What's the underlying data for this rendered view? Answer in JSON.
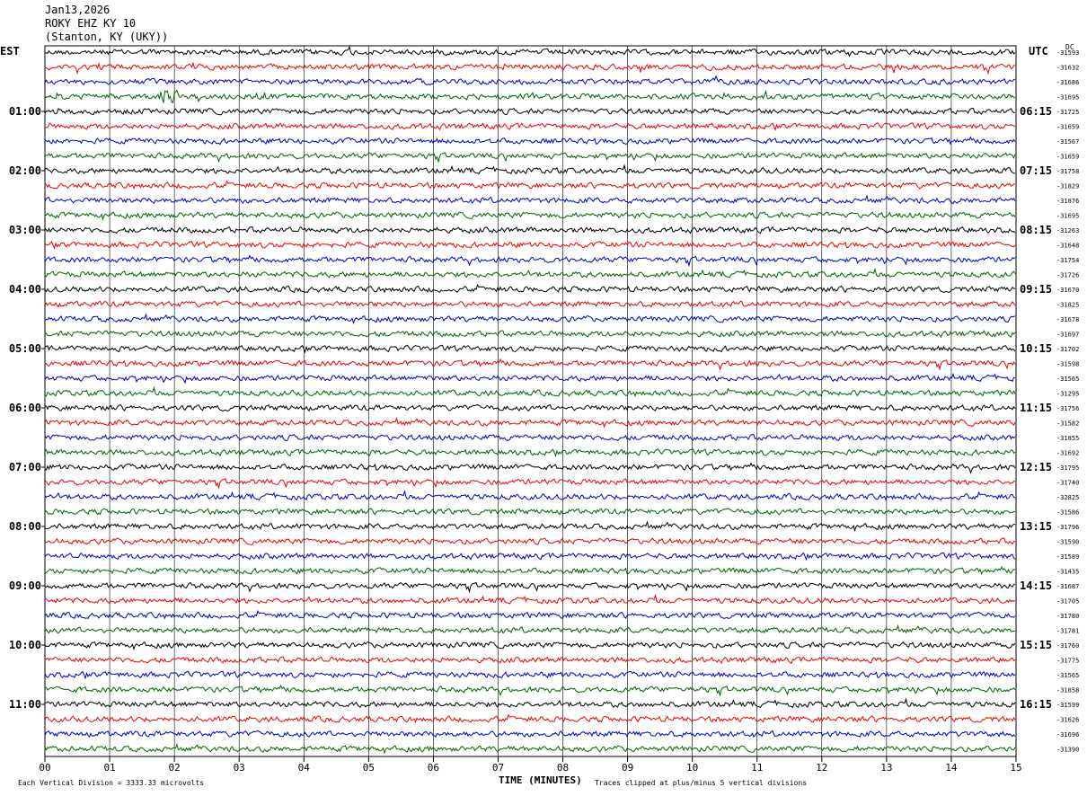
{
  "header": {
    "date": "Jan13,2026",
    "station": "ROKY EHZ KY 10",
    "location": "(Stanton, KY (UKY))"
  },
  "corners": {
    "left": "EST",
    "right": "UTC",
    "dc": "DC"
  },
  "footer": {
    "scale": "Each Vertical Division = 3333.33 microvolts",
    "xlabel": "TIME (MINUTES)",
    "clip": "Traces clipped at plus/minus 5 vertical divisions"
  },
  "colors": {
    "traces": [
      "#000000",
      "#ee0000",
      "#0000cc",
      "#006400"
    ],
    "grid": "#000000"
  },
  "chart_data": {
    "type": "line",
    "title": "ROKY EHZ KY 10",
    "xlabel": "TIME (MINUTES)",
    "xlim": [
      0,
      15
    ],
    "x_ticks": [
      "00",
      "01",
      "02",
      "03",
      "04",
      "05",
      "06",
      "07",
      "08",
      "09",
      "10",
      "11",
      "12",
      "13",
      "14",
      "15"
    ],
    "rows_per_hour": 4,
    "row_count": 48,
    "left_hour_labels": [
      "01:00",
      "02:00",
      "03:00",
      "04:00",
      "05:00",
      "06:00",
      "07:00",
      "08:00",
      "09:00",
      "10:00",
      "11:00"
    ],
    "right_hour_labels": [
      "06:15",
      "07:15",
      "08:15",
      "09:15",
      "10:15",
      "11:15",
      "12:15",
      "13:15",
      "14:15",
      "15:15",
      "16:15"
    ],
    "dc_offsets": [
      "-31593",
      "-31632",
      "-31686",
      "-31695",
      "-31725",
      "-31659",
      "-31567",
      "-31659",
      "-31758",
      "-31829",
      "-31876",
      "-31695",
      "-31263",
      "-31648",
      "-31754",
      "-31726",
      "-31670",
      "-31825",
      "-31678",
      "-31697",
      "-31702",
      "-31598",
      "-31565",
      "-31295",
      "-31756",
      "-31582",
      "-31855",
      "-31692",
      "-31795",
      "-31740",
      "-32825",
      "-31586",
      "-31796",
      "-31590",
      "-31589",
      "-31435",
      "-31687",
      "-31705",
      "-31780",
      "-31781",
      "-31760",
      "-31775",
      "-31565",
      "-31858",
      "-31599",
      "-31626",
      "-31696",
      "-31390"
    ],
    "events": [
      {
        "row": 3,
        "minute": 1.8,
        "amplitude": "high"
      }
    ]
  }
}
